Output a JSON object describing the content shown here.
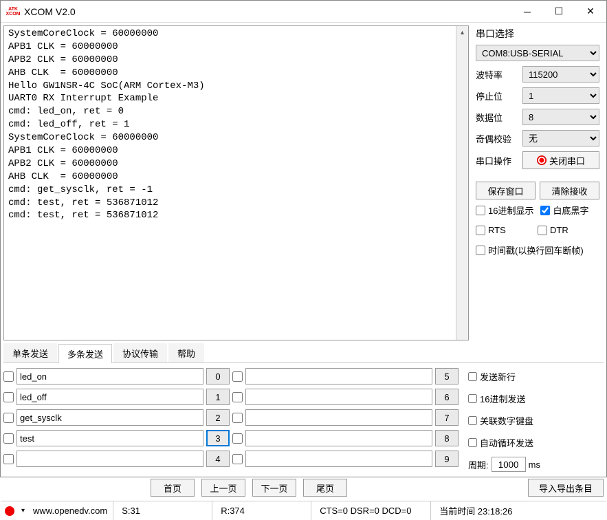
{
  "window": {
    "title": "XCOM V2.0",
    "logo_top": "ATK",
    "logo_bottom": "XCOM"
  },
  "terminal": {
    "text": "SystemCoreClock = 60000000\nAPB1 CLK = 60000000\nAPB2 CLK = 60000000\nAHB CLK  = 60000000\nHello GW1NSR-4C SoC(ARM Cortex-M3)\nUART0 RX Interrupt Example\ncmd: led_on, ret = 0\ncmd: led_off, ret = 1\nSystemCoreClock = 60000000\nAPB1 CLK = 60000000\nAPB2 CLK = 60000000\nAHB CLK  = 60000000\ncmd: get_sysclk, ret = -1\ncmd: test, ret = 536871012\ncmd: test, ret = 536871012"
  },
  "serial": {
    "section": "串口选择",
    "port": "COM8:USB-SERIAL",
    "baud_label": "波特率",
    "baud": "115200",
    "stop_label": "停止位",
    "stop": "1",
    "data_label": "数据位",
    "data": "8",
    "parity_label": "奇偶校验",
    "parity": "无",
    "op_label": "串口操作",
    "op_button": "关闭串口",
    "save_window": "保存窗口",
    "clear_rx": "清除接收",
    "hex_display": "16进制显示",
    "white_bg": "白底黑字",
    "rts": "RTS",
    "dtr": "DTR",
    "timestamp": "时间戳(以换行回车断帧)",
    "white_bg_checked": true
  },
  "tabs": {
    "single": "单条发送",
    "multi": "多条发送",
    "protocol": "协议传输",
    "help": "帮助",
    "active": "multi"
  },
  "send": {
    "col1": [
      {
        "text": "led_on",
        "n": "0"
      },
      {
        "text": "led_off",
        "n": "1"
      },
      {
        "text": "get_sysclk",
        "n": "2"
      },
      {
        "text": "test",
        "n": "3",
        "active": true
      },
      {
        "text": "",
        "n": "4"
      }
    ],
    "col2": [
      {
        "text": "",
        "n": "5"
      },
      {
        "text": "",
        "n": "6"
      },
      {
        "text": "",
        "n": "7"
      },
      {
        "text": "",
        "n": "8"
      },
      {
        "text": "",
        "n": "9"
      }
    ],
    "opts": {
      "newline": "发送新行",
      "hex": "16进制发送",
      "numpad": "关联数字键盘",
      "autoloop": "自动循环发送",
      "period_label": "周期:",
      "period_value": "1000",
      "period_unit": "ms"
    }
  },
  "pager": {
    "first": "首页",
    "prev": "上一页",
    "next": "下一页",
    "last": "尾页",
    "export": "导入导出条目"
  },
  "status": {
    "url": "www.openedv.com",
    "s": "S:31",
    "r": "R:374",
    "signals": "CTS=0 DSR=0 DCD=0",
    "time_label": "当前时间 23:18:26"
  }
}
